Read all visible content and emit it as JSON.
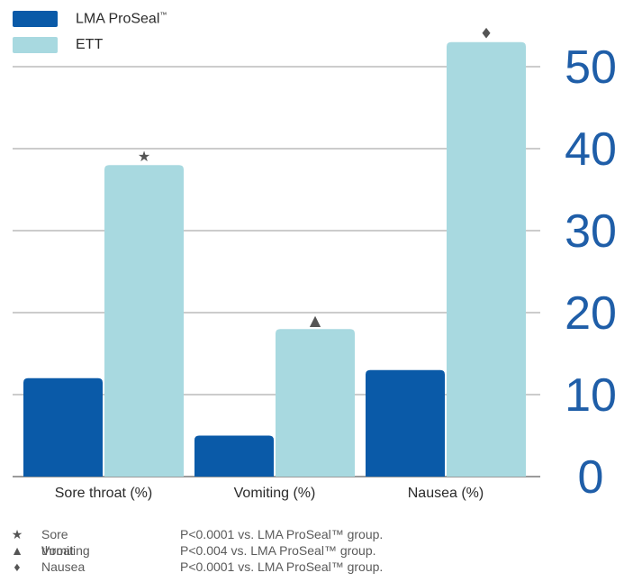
{
  "chart_data": {
    "type": "bar",
    "categories": [
      "Sore throat (%)",
      "Vomiting (%)",
      "Nausea (%)"
    ],
    "series": [
      {
        "name": "LMA ProSeal™",
        "values": [
          12,
          5,
          13
        ],
        "color": "#0a5aa8"
      },
      {
        "name": "ETT",
        "values": [
          38,
          18,
          53
        ],
        "color": "#a8d9e0"
      }
    ],
    "y_ticks": [
      "0",
      "10",
      "20",
      "30",
      "40",
      "50"
    ],
    "ylim": [
      0,
      50
    ],
    "grid": true,
    "legend_position": "top-left",
    "axis_label_color": "#1f5ea8",
    "markers": [
      "★",
      "▲",
      "♦"
    ]
  },
  "legend": {
    "items": [
      {
        "label": "LMA ProSeal",
        "suffix": "™",
        "color": "#0a5aa8"
      },
      {
        "label": "ETT",
        "suffix": "",
        "color": "#a8d9e0"
      }
    ]
  },
  "footnotes": [
    {
      "symbol": "★",
      "name": "Sore throat",
      "text": "P<0.0001 vs. LMA ProSeal™ group."
    },
    {
      "symbol": "▲",
      "name": "Vomiting",
      "text": "P<0.004 vs. LMA ProSeal™ group."
    },
    {
      "symbol": "♦",
      "name": "Nausea",
      "text": "P<0.0001 vs. LMA ProSeal™ group."
    }
  ]
}
